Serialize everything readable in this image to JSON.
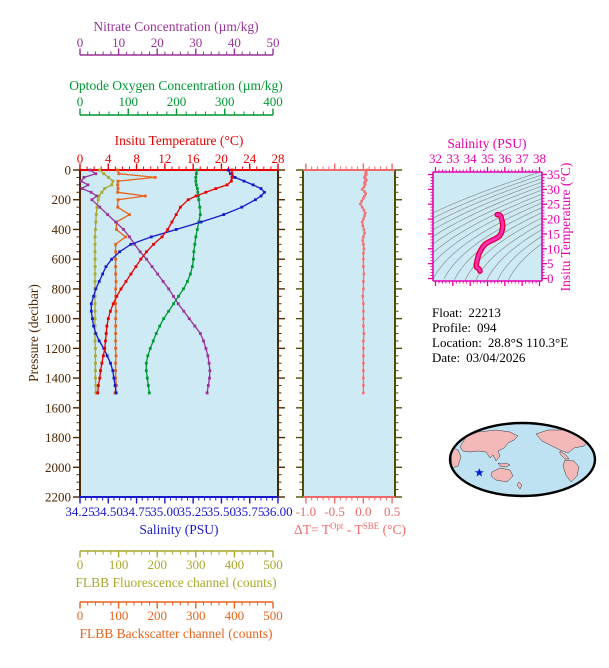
{
  "info": {
    "lines": [
      {
        "label": "Float:",
        "value": "22213"
      },
      {
        "label": "Profile:",
        "value": "094"
      },
      {
        "label": "Location:",
        "value": "28.8°S  110.3°E"
      },
      {
        "label": "Date:",
        "value": "03/04/2026"
      }
    ]
  },
  "map": {
    "marker": "star",
    "marker_color": "#0022DD",
    "land_color": "#F3B9B9",
    "ocean_color": "#BFE2F2",
    "outline_color": "#000000"
  },
  "chart_data": [
    {
      "id": "main_profile_panel",
      "type": "line",
      "background": "#CDEAF5",
      "y_axis": {
        "label": "Pressure (decibar)",
        "min": 0,
        "max": 2200,
        "major": 200,
        "minor": 50,
        "color": "#4E2600"
      },
      "x_axes": [
        {
          "id": "nitrate",
          "label": "Nitrate Concentration (µm/kg)",
          "min": 0,
          "max": 50,
          "major": 10,
          "minor": 2,
          "color": "#993399",
          "position": "floating-top-1"
        },
        {
          "id": "oxygen",
          "label": "Optode Oxygen Concentration (µm/kg)",
          "min": 0,
          "max": 400,
          "major": 100,
          "minor": 20,
          "color": "#009933",
          "position": "floating-top-2"
        },
        {
          "id": "temperature",
          "label": "Insitu Temperature (°C)",
          "min": 0,
          "max": 28,
          "major": 4,
          "minor": 1,
          "color": "#E80000",
          "position": "top"
        },
        {
          "id": "salinity",
          "label": "Salinity (PSU)",
          "min": 34.25,
          "max": 36.0,
          "major": 0.25,
          "minor": 0.05,
          "color": "#1818CC",
          "position": "bottom",
          "decimals": 2
        },
        {
          "id": "fluorescence",
          "label": "FLBB Fluorescence channel (counts)",
          "min": 0,
          "max": 500,
          "major": 100,
          "minor": 20,
          "color": "#A9A92C",
          "position": "floating-bottom-1"
        },
        {
          "id": "backscatter",
          "label": "FLBB Backscatter channel (counts)",
          "min": 0,
          "max": 500,
          "major": 100,
          "minor": 20,
          "color": "#E8641C",
          "position": "floating-bottom-2"
        }
      ],
      "pressure_dbar": [
        0,
        25,
        50,
        75,
        100,
        125,
        150,
        175,
        200,
        250,
        300,
        350,
        400,
        450,
        500,
        550,
        600,
        650,
        700,
        750,
        800,
        850,
        900,
        950,
        1000,
        1050,
        1100,
        1150,
        1200,
        1250,
        1300,
        1350,
        1400,
        1450,
        1500
      ],
      "series": [
        {
          "name": "fluorescence",
          "axis": "fluorescence",
          "color": "#A9A92C",
          "values": [
            50,
            60,
            72,
            83,
            80,
            62,
            55,
            48,
            46,
            43,
            41,
            40,
            39,
            38,
            38,
            38,
            38,
            38,
            38,
            38,
            38,
            38,
            38,
            38,
            38,
            38,
            38,
            38,
            39,
            39,
            39,
            39,
            39,
            40,
            40
          ]
        },
        {
          "name": "backscatter",
          "axis": "backscatter",
          "color": "#E8641C",
          "values": [
            95,
            98,
            190,
            96,
            95,
            96,
            95,
            165,
            96,
            95,
            125,
            92,
            92,
            115,
            90,
            90,
            90,
            90,
            90,
            91,
            90,
            90,
            90,
            91,
            90,
            90,
            90,
            90,
            90,
            91,
            90,
            90,
            90,
            92,
            88
          ]
        },
        {
          "name": "nitrate",
          "axis": "nitrate",
          "color": "#993399",
          "values": [
            2.5,
            4.0,
            1.0,
            0.3,
            2.0,
            0.5,
            2.8,
            4.2,
            3.0,
            5.0,
            7.0,
            9.0,
            11.0,
            12.5,
            13.8,
            15.2,
            16.8,
            18.2,
            19.6,
            21.0,
            22.4,
            23.6,
            24.8,
            26.2,
            27.6,
            29.0,
            30.4,
            31.2,
            31.8,
            32.3,
            32.6,
            32.8,
            32.7,
            32.4,
            32.1
          ]
        },
        {
          "name": "oxygen",
          "axis": "oxygen",
          "color": "#009933",
          "values": [
            236,
            235,
            234,
            234,
            235,
            237,
            238,
            239,
            240,
            242,
            243,
            240,
            237,
            234,
            232,
            230,
            229,
            227,
            223,
            217,
            209,
            199,
            189,
            179,
            169,
            161,
            154,
            148,
            142,
            137,
            134,
            134,
            136,
            138,
            140
          ]
        },
        {
          "name": "salinity",
          "axis": "salinity",
          "color": "#1818CC",
          "values": [
            35.56,
            35.58,
            35.62,
            35.7,
            35.78,
            35.85,
            35.88,
            35.85,
            35.8,
            35.68,
            35.52,
            35.32,
            35.1,
            34.88,
            34.7,
            34.6,
            34.53,
            34.48,
            34.45,
            34.42,
            34.39,
            34.37,
            34.35,
            34.35,
            34.36,
            34.37,
            34.39,
            34.42,
            34.46,
            34.49,
            34.52,
            34.54,
            34.55,
            34.56,
            34.57
          ]
        },
        {
          "name": "temperature",
          "axis": "temperature",
          "color": "#E80000",
          "values": [
            21.5,
            21.5,
            21.5,
            21.4,
            20.8,
            19.2,
            17.8,
            16.4,
            15.3,
            14.2,
            13.6,
            13.0,
            12.4,
            11.6,
            10.4,
            9.4,
            8.6,
            7.9,
            7.2,
            6.5,
            5.8,
            5.2,
            4.7,
            4.3,
            4.0,
            3.8,
            3.7,
            3.6,
            3.5,
            3.3,
            3.1,
            2.9,
            2.8,
            2.6,
            2.5
          ]
        }
      ]
    },
    {
      "id": "delta_t_panel",
      "type": "line",
      "background": "#CDEAF5",
      "x_axis": {
        "label": "ΔT= TOpt - TSBE (°C)",
        "label_parts": {
          "prefix": "ΔT= T",
          "sup1": "Opt",
          "mid": " - T",
          "sup2": "SBE",
          "suffix": " (°C)"
        },
        "min": -1.0,
        "max": 0.5,
        "major": 0.5,
        "minor": 0.1,
        "color": "#F06A6A",
        "decimals": 1
      },
      "y_axis": {
        "min": 0,
        "max": 2200,
        "major": 200,
        "minor": 50,
        "color": "#4F4F00"
      },
      "series": {
        "name": "delta_t",
        "color": "#F86F6F",
        "pressure_dbar": [
          0,
          10,
          20,
          30,
          40,
          50,
          60,
          70,
          80,
          90,
          100,
          115,
          130,
          145,
          160,
          175,
          190,
          210,
          230,
          250,
          270,
          290,
          310,
          330,
          350,
          375,
          400,
          425,
          450,
          475,
          500,
          530,
          560,
          600,
          650,
          700,
          750,
          800,
          850,
          900,
          950,
          1000,
          1050,
          1100,
          1150,
          1200,
          1250,
          1300,
          1350,
          1400,
          1450,
          1500
        ],
        "values": [
          0.06,
          0.05,
          0.04,
          0.05,
          0.03,
          0.02,
          0.04,
          0.05,
          0.03,
          0.02,
          0.03,
          0.01,
          -0.02,
          0.02,
          0.04,
          0.02,
          0.0,
          -0.03,
          -0.05,
          -0.02,
          0.01,
          0.03,
          0.02,
          0.0,
          -0.02,
          -0.01,
          0.01,
          0.02,
          0.0,
          -0.01,
          0.0,
          0.01,
          0.0,
          0.0,
          0.0,
          0.01,
          0.0,
          0.0,
          -0.01,
          0.0,
          0.0,
          0.0,
          0.0,
          0.01,
          0.0,
          0.0,
          0.0,
          0.0,
          0.0,
          0.0,
          0.0,
          0.0
        ]
      }
    },
    {
      "id": "ts_diagram_panel",
      "type": "line",
      "background": "#CDEAF5",
      "x_axis": {
        "label": "Salinity (PSU)",
        "min": 32,
        "max": 38,
        "major": 1,
        "minor": 0.2,
        "color": "#E600AE"
      },
      "y_axis": {
        "label": "Insitu Temperature (°C)",
        "min": 0,
        "max": 35,
        "major": 5,
        "minor": 1,
        "color": "#E600AE"
      },
      "curve": {
        "note": "T-S curve drawn from main panel temperature and salinity series",
        "outer_color": "#E0003C",
        "inner_color": "#FF2EB8"
      },
      "contours": {
        "style": "isopycnal-like arcs",
        "color": "#8F8F8F",
        "count": 16
      }
    }
  ]
}
